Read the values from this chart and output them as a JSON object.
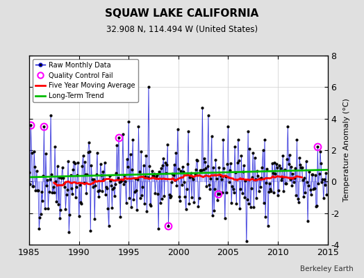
{
  "title": "SQUAW LAKE CALIFORNIA",
  "subtitle": "32.908 N, 114.494 W (United States)",
  "ylabel": "Temperature Anomaly (°C)",
  "watermark": "Berkeley Earth",
  "xlim": [
    1985,
    2015
  ],
  "ylim": [
    -4,
    8
  ],
  "yticks": [
    -4,
    -2,
    0,
    2,
    4,
    6,
    8
  ],
  "xticks": [
    1985,
    1990,
    1995,
    2000,
    2005,
    2010,
    2015
  ],
  "background_color": "#e0e0e0",
  "plot_bg_color": "#ffffff",
  "raw_stem_color": "#8888ff",
  "raw_dot_color": "#000000",
  "raw_line_color": "#0000cc",
  "ma_color": "#ff0000",
  "trend_color": "#00bb00",
  "qc_color": "#ff00ff",
  "seed": 42,
  "figwidth": 5.24,
  "figheight": 4.0,
  "dpi": 100
}
